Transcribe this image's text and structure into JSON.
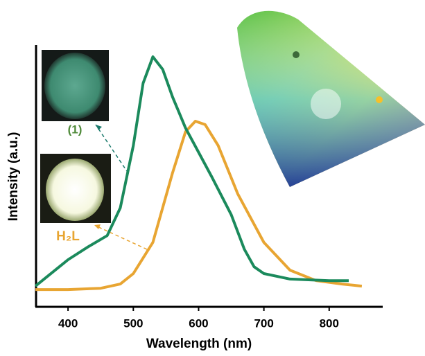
{
  "chart_data": {
    "type": "line",
    "x_label": "Wavelength (nm)",
    "y_label": "Intensity (a.u.)",
    "xlim": [
      351,
      882
    ],
    "xticks": [
      400,
      500,
      600,
      700,
      800
    ],
    "ylim": [
      0,
      1
    ],
    "annotations": [
      "(1)",
      "H₂L"
    ],
    "series": [
      {
        "name": "(1)",
        "color": "#1b8a5c",
        "x": [
          350,
          400,
          430,
          460,
          480,
          500,
          515,
          530,
          545,
          560,
          580,
          600,
          620,
          650,
          670,
          685,
          700,
          740,
          800,
          830
        ],
        "values": [
          0.079,
          0.18,
          0.228,
          0.272,
          0.378,
          0.616,
          0.854,
          0.955,
          0.907,
          0.802,
          0.683,
          0.59,
          0.497,
          0.352,
          0.22,
          0.153,
          0.127,
          0.106,
          0.1,
          0.1
        ]
      },
      {
        "name": "H₂L",
        "color": "#e8a532",
        "x": [
          350,
          400,
          450,
          480,
          500,
          530,
          560,
          580,
          595,
          610,
          630,
          660,
          700,
          740,
          780,
          820,
          850
        ],
        "values": [
          0.066,
          0.066,
          0.071,
          0.087,
          0.127,
          0.246,
          0.511,
          0.669,
          0.709,
          0.696,
          0.616,
          0.431,
          0.246,
          0.14,
          0.1,
          0.087,
          0.079
        ]
      }
    ]
  }
}
